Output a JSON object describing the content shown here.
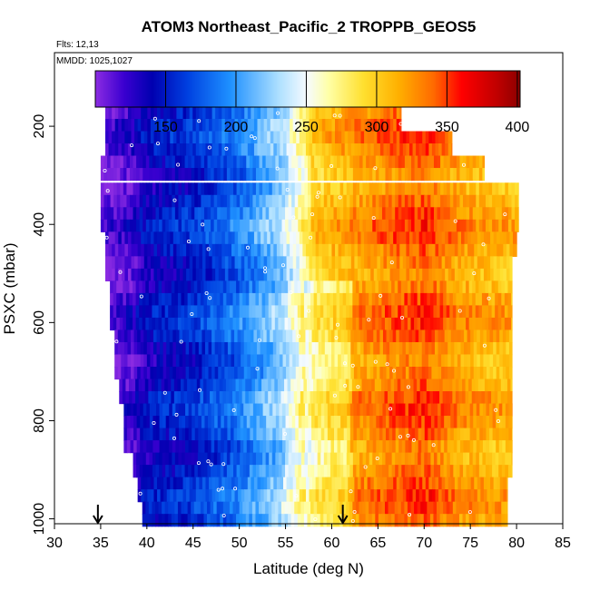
{
  "chart_data": {
    "type": "heatmap",
    "title": "ATOM3 Northeast_Pacific_2 TROPPB_GEOS5",
    "annotations": {
      "flights": "Flts: 12,13",
      "mmdd": "MMDD: 1025,1027"
    },
    "xlabel": "Latitude (deg N)",
    "ylabel": "PSXC (mbar)",
    "xlim": [
      30,
      85
    ],
    "ylim": [
      1010,
      50
    ],
    "x_ticks": [
      30,
      35,
      40,
      45,
      50,
      55,
      60,
      65,
      70,
      75,
      80,
      85
    ],
    "y_ticks": [
      200,
      400,
      600,
      800,
      1000
    ],
    "colorbar": {
      "range": [
        100,
        402
      ],
      "ticks": [
        150,
        200,
        250,
        300,
        350,
        400
      ],
      "stops": [
        {
          "value": 100,
          "color": "#8a2be2"
        },
        {
          "value": 120,
          "color": "#3a00d0"
        },
        {
          "value": 140,
          "color": "#0000b0"
        },
        {
          "value": 165,
          "color": "#0040e0"
        },
        {
          "value": 195,
          "color": "#1e90ff"
        },
        {
          "value": 230,
          "color": "#aee0ff"
        },
        {
          "value": 250,
          "color": "#f6fbff"
        },
        {
          "value": 265,
          "color": "#ffffa8"
        },
        {
          "value": 290,
          "color": "#ffe030"
        },
        {
          "value": 315,
          "color": "#ffb000"
        },
        {
          "value": 340,
          "color": "#ff6a00"
        },
        {
          "value": 360,
          "color": "#ff0000"
        },
        {
          "value": 385,
          "color": "#c00000"
        },
        {
          "value": 402,
          "color": "#8b0000"
        }
      ]
    },
    "rows": [
      {
        "p": 185,
        "lat_min": 35.5,
        "lat_max": 67.5
      },
      {
        "p": 235,
        "lat_min": 35.5,
        "lat_max": 73.0
      },
      {
        "p": 285,
        "lat_min": 35.0,
        "lat_max": 76.5
      },
      {
        "p": 340,
        "lat_min": 35.0,
        "lat_max": 80.2
      },
      {
        "p": 390,
        "lat_min": 35.0,
        "lat_max": 80.2
      },
      {
        "p": 440,
        "lat_min": 35.5,
        "lat_max": 80.0
      },
      {
        "p": 490,
        "lat_min": 35.5,
        "lat_max": 79.5
      },
      {
        "p": 540,
        "lat_min": 36.0,
        "lat_max": 79.5
      },
      {
        "p": 590,
        "lat_min": 36.0,
        "lat_max": 79.5
      },
      {
        "p": 640,
        "lat_min": 36.5,
        "lat_max": 79.5
      },
      {
        "p": 690,
        "lat_min": 36.5,
        "lat_max": 79.5
      },
      {
        "p": 740,
        "lat_min": 37.0,
        "lat_max": 79.5
      },
      {
        "p": 790,
        "lat_min": 37.5,
        "lat_max": 79.5
      },
      {
        "p": 840,
        "lat_min": 37.5,
        "lat_max": 79.5
      },
      {
        "p": 890,
        "lat_min": 38.5,
        "lat_max": 79.5
      },
      {
        "p": 940,
        "lat_min": 39.0,
        "lat_max": 79.0
      },
      {
        "p": 990,
        "lat_min": 39.5,
        "lat_max": 79.0
      }
    ],
    "profile": [
      {
        "lat": 35,
        "value": 105
      },
      {
        "lat": 38,
        "value": 120
      },
      {
        "lat": 40,
        "value": 140
      },
      {
        "lat": 45,
        "value": 155
      },
      {
        "lat": 50,
        "value": 185
      },
      {
        "lat": 54,
        "value": 220
      },
      {
        "lat": 56,
        "value": 255
      },
      {
        "lat": 58,
        "value": 300
      },
      {
        "lat": 62,
        "value": 320
      },
      {
        "lat": 66,
        "value": 335
      },
      {
        "lat": 70,
        "value": 345
      },
      {
        "lat": 74,
        "value": 320
      },
      {
        "lat": 80,
        "value": 310
      }
    ],
    "arrows": [
      {
        "lat": 34.7
      },
      {
        "lat": 61.2
      }
    ]
  }
}
